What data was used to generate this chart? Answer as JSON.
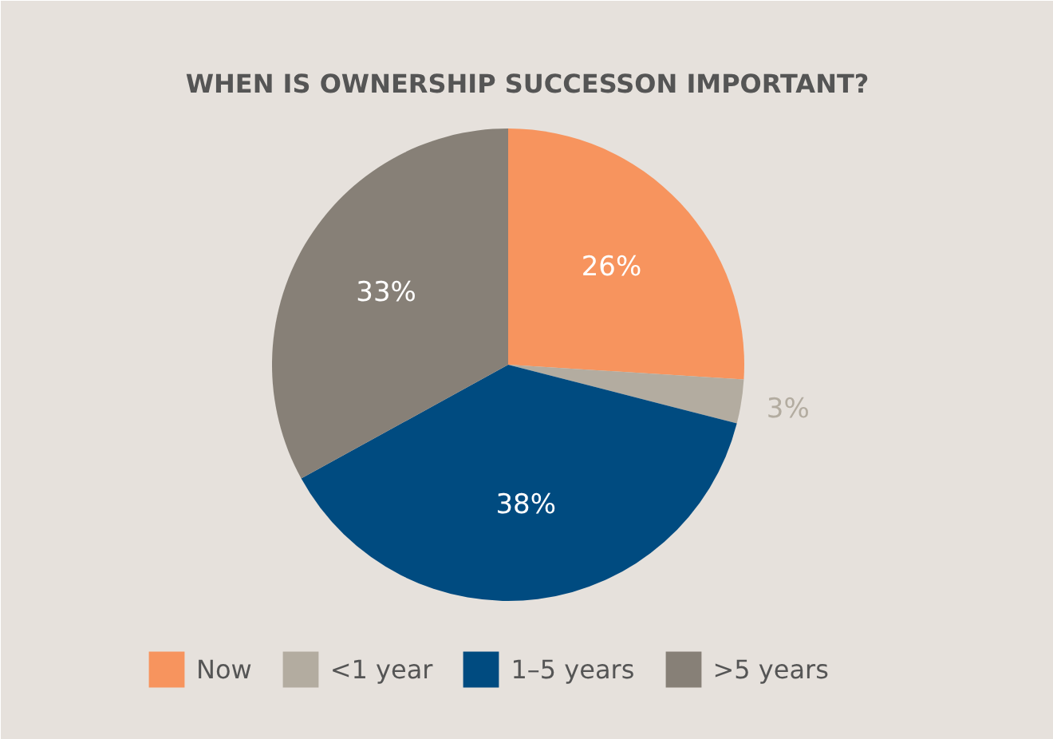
{
  "chart_data": {
    "type": "pie",
    "title": "WHEN IS OWNERSHIP SUCCESSON IMPORTANT?",
    "categories": [
      "Now",
      "<1 year",
      "1–5 years",
      ">5 years"
    ],
    "values": [
      26,
      3,
      38,
      33
    ],
    "colors": [
      "#f7945e",
      "#b3aca0",
      "#004b80",
      "#878077"
    ],
    "value_labels": [
      "26%",
      "3%",
      "38%",
      "33%"
    ],
    "legend": "bottom"
  }
}
